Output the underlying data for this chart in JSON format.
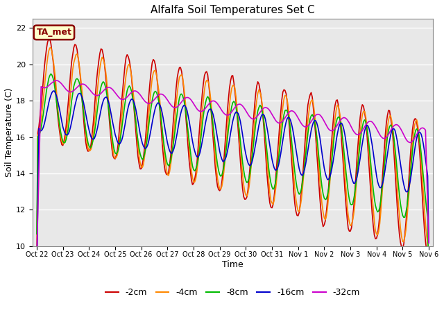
{
  "title": "Alfalfa Soil Temperatures Set C",
  "xlabel": "Time",
  "ylabel": "Soil Temperature (C)",
  "ylim": [
    10,
    22.5
  ],
  "bg_color": "#e8e8e8",
  "annotation_text": "TA_met",
  "annotation_box_color": "#ffffcc",
  "annotation_border_color": "#880000",
  "annotation_text_color": "#880000",
  "xtick_labels": [
    "Oct 22",
    "Oct 23",
    "Oct 24",
    "Oct 25",
    "Oct 26",
    "Oct 27",
    "Oct 28",
    "Oct 29",
    "Oct 30",
    "Oct 31",
    "Nov 1",
    "Nov 2",
    "Nov 3",
    "Nov 4",
    "Nov 5",
    "Nov 6"
  ],
  "ytick_positions": [
    10,
    12,
    14,
    16,
    18,
    20,
    22
  ],
  "legend_labels": [
    "-2cm",
    "-4cm",
    "-8cm",
    "-16cm",
    "-32cm"
  ],
  "legend_colors": [
    "#cc0000",
    "#ff8800",
    "#00bb00",
    "#0000cc",
    "#cc00cc"
  ],
  "line_width": 1.2
}
